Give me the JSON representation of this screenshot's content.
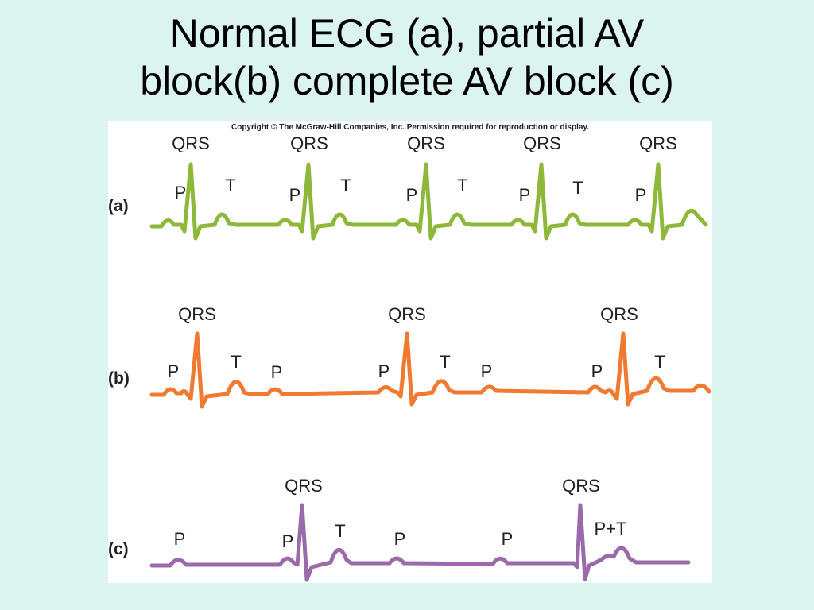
{
  "title": {
    "line1": "Normal ECG (a), partial AV",
    "line2": "block(b) complete AV block (c)"
  },
  "figure": {
    "copyright": "Copyright © The McGraw-Hill Companies, Inc. Permission required for reproduction or display.",
    "colors": {
      "a": "#8db83a",
      "b": "#f07a30",
      "c": "#9a6aaa",
      "text": "#222222"
    },
    "panels": [
      {
        "label": "(a)",
        "color": "#8db83a",
        "beats": [
          {
            "qrs": "QRS",
            "p": "P",
            "t": "T"
          },
          {
            "qrs": "QRS",
            "p": "P",
            "t": "T"
          },
          {
            "qrs": "QRS",
            "p": "P",
            "t": "T"
          },
          {
            "qrs": "QRS",
            "p": "P",
            "t": "T"
          },
          {
            "qrs": "QRS",
            "p": "P"
          }
        ]
      },
      {
        "label": "(b)",
        "color": "#f07a30",
        "qrs": [
          "QRS",
          "QRS",
          "QRS"
        ],
        "waves": [
          "P",
          "T",
          "P",
          "P",
          "T",
          "P",
          "P",
          "T"
        ]
      },
      {
        "label": "(c)",
        "color": "#9a6aaa",
        "qrs": [
          "QRS",
          "QRS"
        ],
        "waves": [
          "P",
          "P",
          "T",
          "P",
          "P",
          "P+T"
        ]
      }
    ]
  }
}
